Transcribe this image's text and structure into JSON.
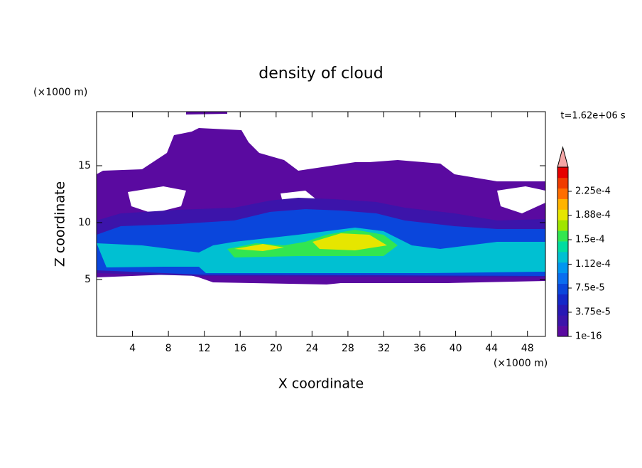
{
  "chart_data": {
    "type": "contour",
    "title": "density of cloud",
    "x_label": "X coordinate",
    "y_label": "Z coordinate",
    "x_unit": "(×1000 m)",
    "y_unit": "(×1000 m)",
    "time_label": "t=1.62e+06 s",
    "xlim": [
      0,
      50
    ],
    "ylim": [
      0,
      19.75
    ],
    "xticks": [
      4,
      8,
      12,
      16,
      20,
      24,
      28,
      32,
      36,
      40,
      44,
      48
    ],
    "yticks": [
      5,
      10,
      15
    ],
    "colorbar": {
      "lim": [
        0,
        0.0002625
      ],
      "ticks": [
        {
          "value": 1e-16,
          "label": "1e-16"
        },
        {
          "value": 3.75e-05,
          "label": "3.75e-5"
        },
        {
          "value": 7.5e-05,
          "label": "7.5e-5"
        },
        {
          "value": 0.000112,
          "label": "1.12e-4"
        },
        {
          "value": 0.00015,
          "label": "1.5e-4"
        },
        {
          "value": 0.000188,
          "label": "1.88e-4"
        },
        {
          "value": 0.000225,
          "label": "2.25e-4"
        }
      ],
      "colors": [
        "#5a0aa0",
        "#3c14aa",
        "#2818b4",
        "#1428c8",
        "#0a46dc",
        "#0a6ef0",
        "#0096f0",
        "#00c0d2",
        "#00dca0",
        "#32e650",
        "#a0e600",
        "#e6e600",
        "#ffb400",
        "#ff6e00",
        "#f03c00",
        "#e60000"
      ],
      "extend_color": "#f4a6a6"
    }
  }
}
